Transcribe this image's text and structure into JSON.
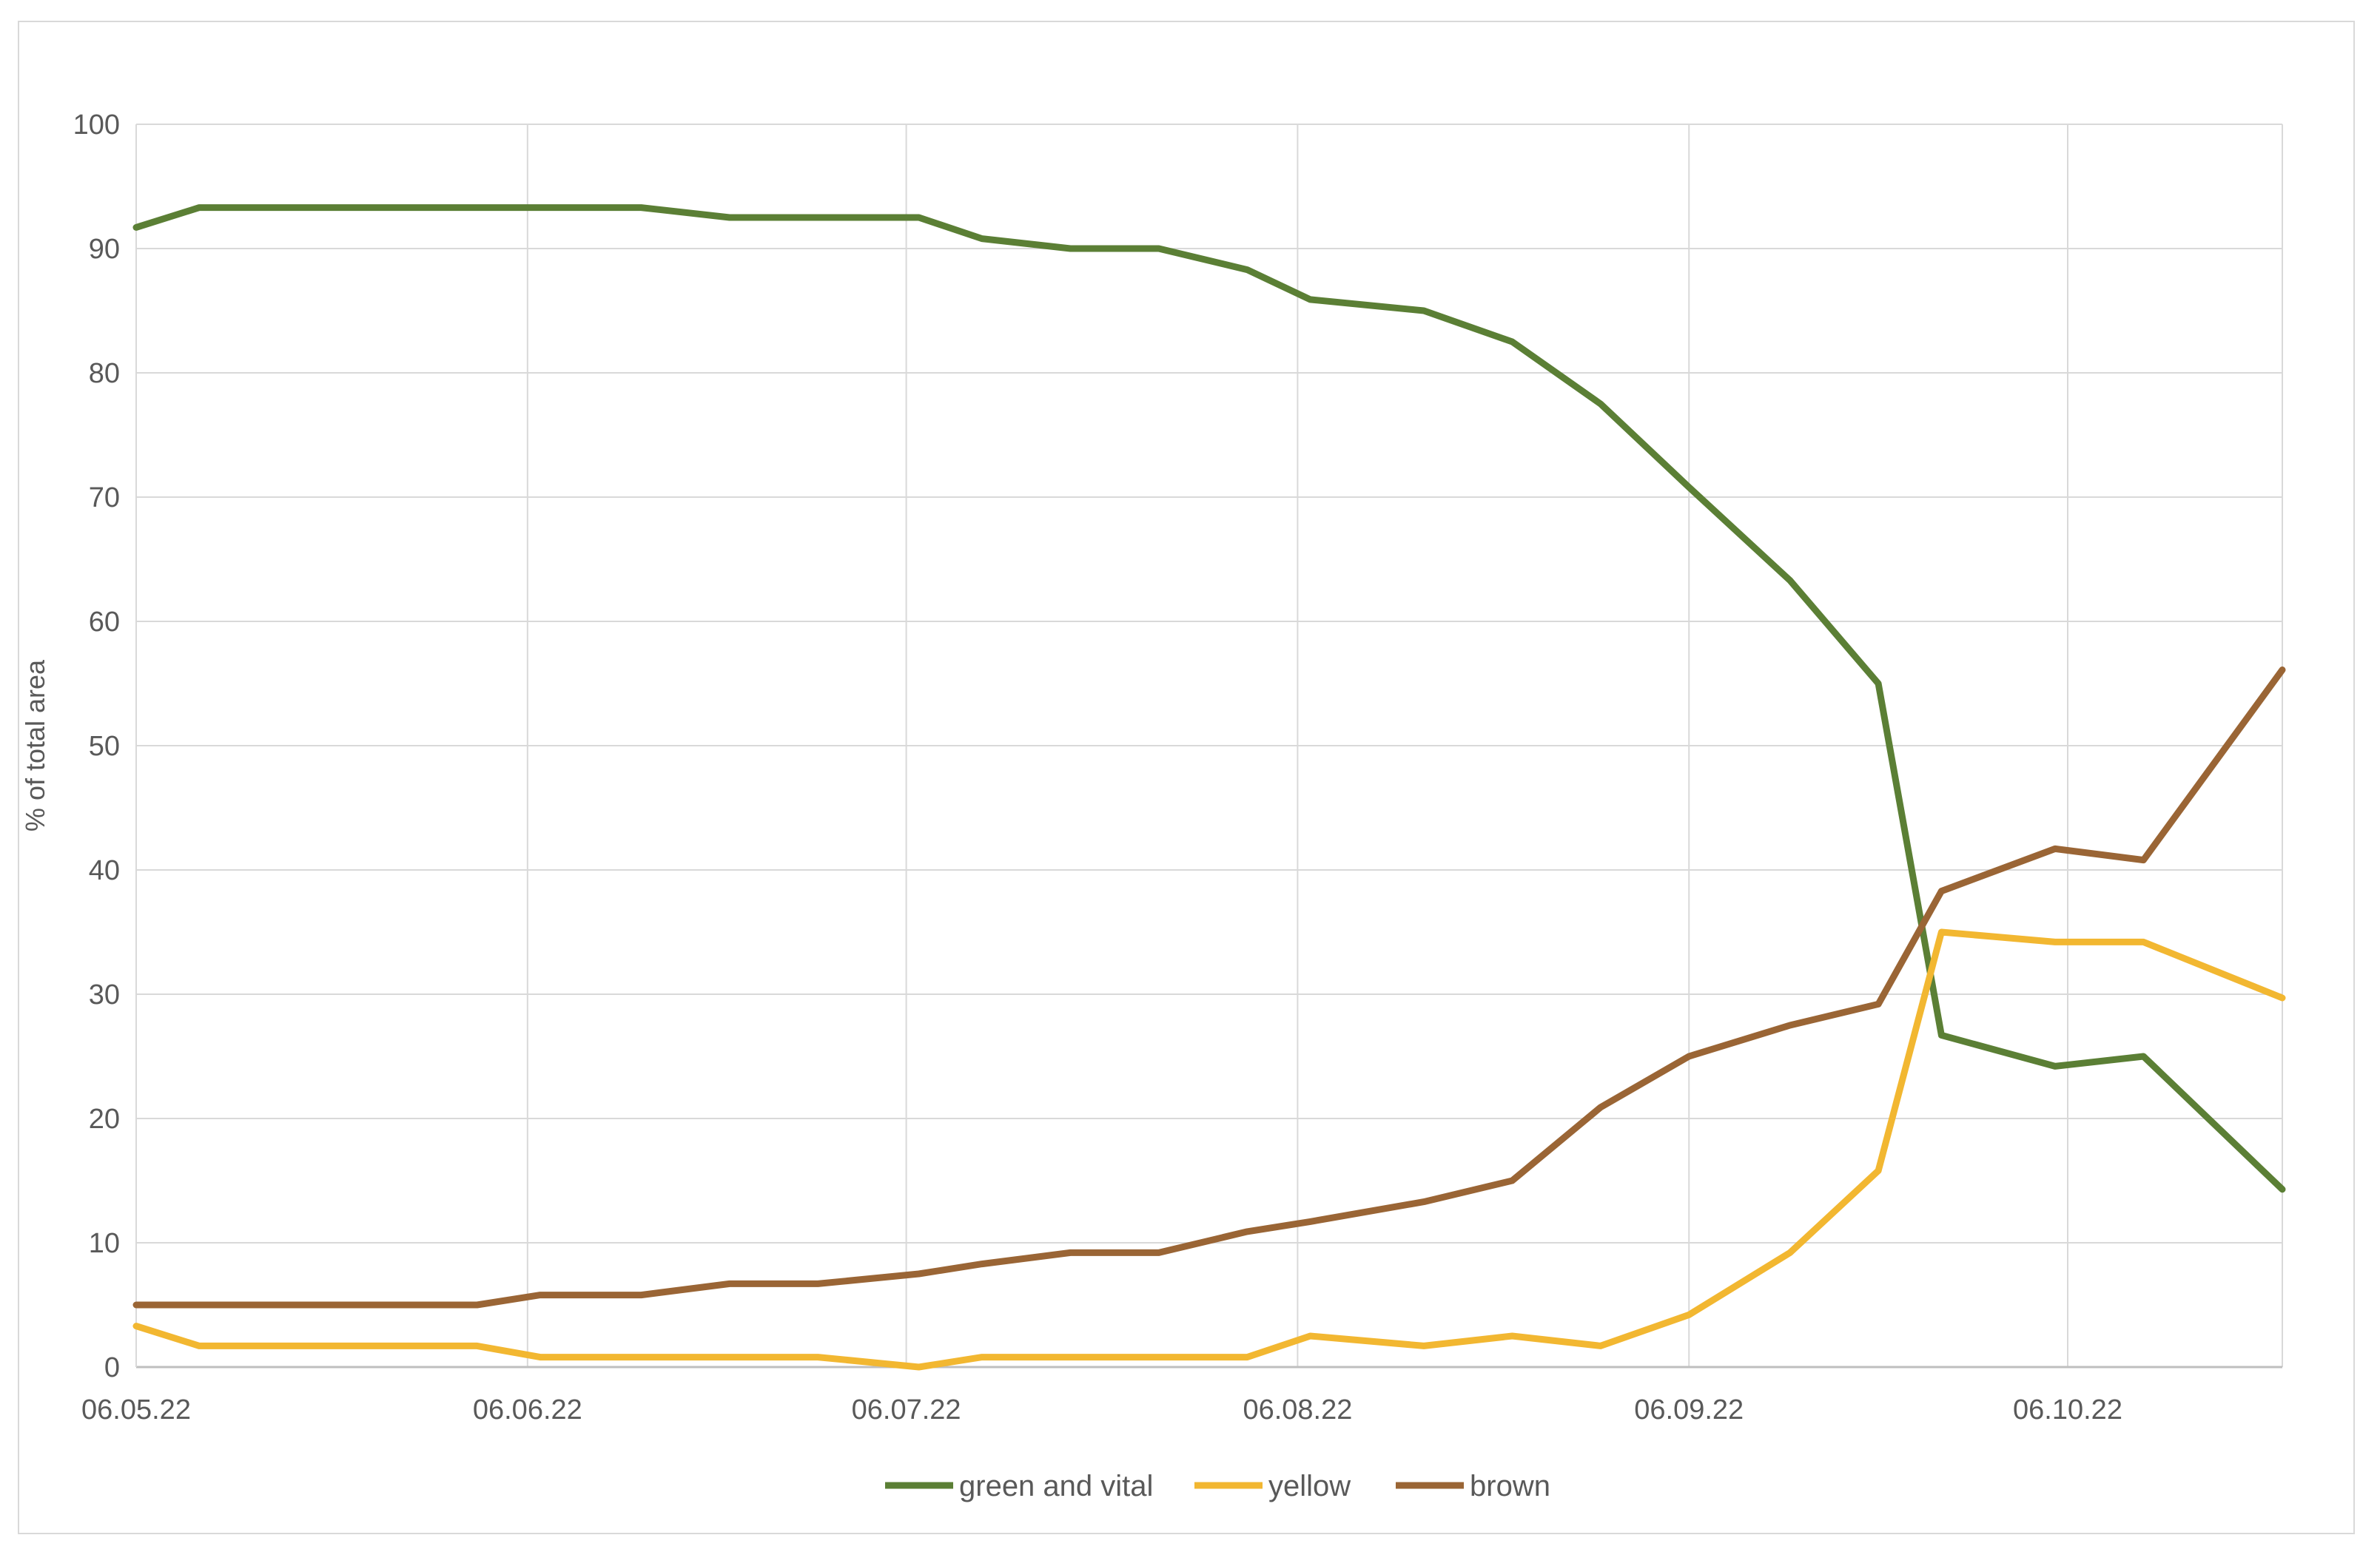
{
  "chart_data": {
    "type": "line",
    "title": "",
    "xlabel": "",
    "ylabel": "% of total area",
    "ylim": [
      0,
      100
    ],
    "yticks": [
      0,
      10,
      20,
      30,
      40,
      50,
      60,
      70,
      80,
      90,
      100
    ],
    "xlim": [
      "2022-05-06",
      "2022-10-23"
    ],
    "xtick_labels": [
      "06.05.22",
      "06.06.22",
      "06.07.22",
      "06.08.22",
      "06.09.22",
      "06.10.22"
    ],
    "xtick_dates": [
      "2022-05-06",
      "2022-06-06",
      "2022-07-06",
      "2022-08-06",
      "2022-09-06",
      "2022-10-06"
    ],
    "grid": "on",
    "legend_position": "bottom",
    "x": [
      "2022-05-06",
      "2022-05-11",
      "2022-06-02",
      "2022-06-07",
      "2022-06-15",
      "2022-06-22",
      "2022-06-29",
      "2022-07-07",
      "2022-07-12",
      "2022-07-19",
      "2022-07-26",
      "2022-08-02",
      "2022-08-07",
      "2022-08-16",
      "2022-08-23",
      "2022-08-30",
      "2022-09-06",
      "2022-09-14",
      "2022-09-21",
      "2022-09-26",
      "2022-10-05",
      "2022-10-12",
      "2022-10-23"
    ],
    "series": [
      {
        "name": "green and vital",
        "color": "#5b7f35",
        "values": [
          91.7,
          93.3,
          93.3,
          93.3,
          93.3,
          92.5,
          92.5,
          92.5,
          90.8,
          90.0,
          90.0,
          88.3,
          85.9,
          85.0,
          82.5,
          77.5,
          70.8,
          63.3,
          55.0,
          26.7,
          24.2,
          25.0,
          14.3
        ]
      },
      {
        "name": "yellow",
        "color": "#f2b731",
        "values": [
          3.3,
          1.7,
          1.7,
          0.8,
          0.8,
          0.8,
          0.8,
          0.0,
          0.8,
          0.8,
          0.8,
          0.8,
          2.5,
          1.7,
          2.5,
          1.7,
          4.2,
          9.2,
          15.8,
          35.0,
          34.2,
          34.2,
          29.7
        ]
      },
      {
        "name": "brown",
        "color": "#9a6535",
        "values": [
          5.0,
          5.0,
          5.0,
          5.8,
          5.8,
          6.7,
          6.7,
          7.5,
          8.3,
          9.2,
          9.2,
          10.9,
          11.7,
          13.3,
          15.0,
          20.9,
          25.0,
          27.5,
          29.2,
          38.3,
          41.7,
          40.8,
          56.1
        ]
      }
    ]
  }
}
